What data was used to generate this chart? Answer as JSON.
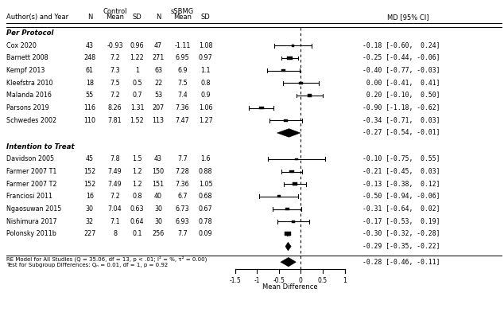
{
  "per_protocol": {
    "label": "Per Protocol",
    "studies": [
      {
        "name": "Cox 2020",
        "cn": 43,
        "cm": "-0.93",
        "csd": "0.96",
        "sn": 47,
        "sm": "-1.11",
        "ssd": "1.08",
        "md": -0.18,
        "lo": -0.6,
        "hi": 0.24,
        "ci_str": "-0.18 [-0.60,  0.24]",
        "weight": 1.0
      },
      {
        "name": "Barnett 2008",
        "cn": 248,
        "cm": "7.2",
        "csd": "1.22",
        "sn": 271,
        "sm": "6.95",
        "ssd": "0.97",
        "md": -0.25,
        "lo": -0.44,
        "hi": -0.06,
        "ci_str": "-0.25 [-0.44, -0.06]",
        "weight": 2.8
      },
      {
        "name": "Kempf 2013",
        "cn": 61,
        "cm": "7.3",
        "csd": "1",
        "sn": 63,
        "sm": "6.9",
        "ssd": "1.1",
        "md": -0.4,
        "lo": -0.77,
        "hi": -0.03,
        "ci_str": "-0.40 [-0.77, -0.03]",
        "weight": 1.5
      },
      {
        "name": "Kleefstra 2010",
        "cn": 18,
        "cm": "7.5",
        "csd": "0.5",
        "sn": 22,
        "sm": "7.5",
        "ssd": "0.8",
        "md": 0.0,
        "lo": -0.41,
        "hi": 0.41,
        "ci_str": " 0.00 [-0.41,  0.41]",
        "weight": 1.2
      },
      {
        "name": "Malanda 2016",
        "cn": 55,
        "cm": "7.2",
        "csd": "0.7",
        "sn": 53,
        "sm": "7.4",
        "ssd": "0.9",
        "md": 0.2,
        "lo": -0.1,
        "hi": 0.5,
        "ci_str": " 0.20 [-0.10,  0.50]",
        "weight": 1.5
      },
      {
        "name": "Parsons 2019",
        "cn": 116,
        "cm": "8.26",
        "csd": "1.31",
        "sn": 207,
        "sm": "7.36",
        "ssd": "1.06",
        "md": -0.9,
        "lo": -1.18,
        "hi": -0.62,
        "ci_str": "-0.90 [-1.18, -0.62]",
        "weight": 2.5
      },
      {
        "name": "Schwedes 2002",
        "cn": 110,
        "cm": "7.81",
        "csd": "1.52",
        "sn": 113,
        "sm": "7.47",
        "ssd": "1.27",
        "md": -0.34,
        "lo": -0.71,
        "hi": 0.03,
        "ci_str": "-0.34 [-0.71,  0.03]",
        "weight": 1.8
      }
    ],
    "pooled": {
      "md": -0.27,
      "lo": -0.54,
      "hi": -0.01,
      "ci_str": "-0.27 [-0.54, -0.01]"
    }
  },
  "intention_to_treat": {
    "label": "Intention to Treat",
    "studies": [
      {
        "name": "Davidson 2005",
        "cn": 45,
        "cm": "7.8",
        "csd": "1.5",
        "sn": 43,
        "sm": "7.7",
        "ssd": "1.6",
        "md": -0.1,
        "lo": -0.75,
        "hi": 0.55,
        "ci_str": "-0.10 [-0.75,  0.55]",
        "weight": 0.9
      },
      {
        "name": "Farmer 2007 T1",
        "cn": 152,
        "cm": "7.49",
        "csd": "1.2",
        "sn": 150,
        "sm": "7.28",
        "ssd": "0.88",
        "md": -0.21,
        "lo": -0.45,
        "hi": 0.03,
        "ci_str": "-0.21 [-0.45,  0.03]",
        "weight": 2.5
      },
      {
        "name": "Farmer 2007 T2",
        "cn": 152,
        "cm": "7.49",
        "csd": "1.2",
        "sn": 151,
        "sm": "7.36",
        "ssd": "1.05",
        "md": -0.13,
        "lo": -0.38,
        "hi": 0.12,
        "ci_str": "-0.13 [-0.38,  0.12]",
        "weight": 2.5
      },
      {
        "name": "Franciosi 2011",
        "cn": 16,
        "cm": "7.2",
        "csd": "0.8",
        "sn": 40,
        "sm": "6.7",
        "ssd": "0.68",
        "md": -0.5,
        "lo": -0.94,
        "hi": -0.06,
        "ci_str": "-0.50 [-0.94, -0.06]",
        "weight": 1.2
      },
      {
        "name": "Ngaosuwan 2015",
        "cn": 30,
        "cm": "7.04",
        "csd": "0.63",
        "sn": 30,
        "sm": "6.73",
        "ssd": "0.67",
        "md": -0.31,
        "lo": -0.64,
        "hi": 0.02,
        "ci_str": "-0.31 [-0.64,  0.02]",
        "weight": 1.5
      },
      {
        "name": "Nishimura 2017",
        "cn": 32,
        "cm": "7.1",
        "csd": "0.64",
        "sn": 30,
        "sm": "6.93",
        "ssd": "0.78",
        "md": -0.17,
        "lo": -0.53,
        "hi": 0.19,
        "ci_str": "-0.17 [-0.53,  0.19]",
        "weight": 1.3
      },
      {
        "name": "Polonsky 2011b",
        "cn": 227,
        "cm": "8",
        "csd": "0.1",
        "sn": 256,
        "sm": "7.7",
        "ssd": "0.09",
        "md": -0.3,
        "lo": -0.32,
        "hi": -0.28,
        "ci_str": "-0.30 [-0.32, -0.28]",
        "weight": 5.0
      }
    ],
    "pooled": {
      "md": -0.29,
      "lo": -0.35,
      "hi": -0.22,
      "ci_str": "-0.29 [-0.35, -0.22]"
    }
  },
  "overall": {
    "md": -0.28,
    "lo": -0.46,
    "hi": -0.11,
    "ci_str": "-0.28 [-0.46, -0.11]"
  },
  "footnote1": "RE Model for All Studies (Q = 35.06, df = 13, p < .01; I² = %, τ² = 0.00)",
  "footnote2": "Test for Subgroup Differences: Qₙ = 0.01, df = 1, p = 0.92",
  "axis_label": "Mean Difference",
  "xlim": [
    -1.8,
    1.3
  ],
  "xticks": [
    -1.5,
    -1.0,
    -0.5,
    0.0,
    0.5,
    1.0
  ]
}
